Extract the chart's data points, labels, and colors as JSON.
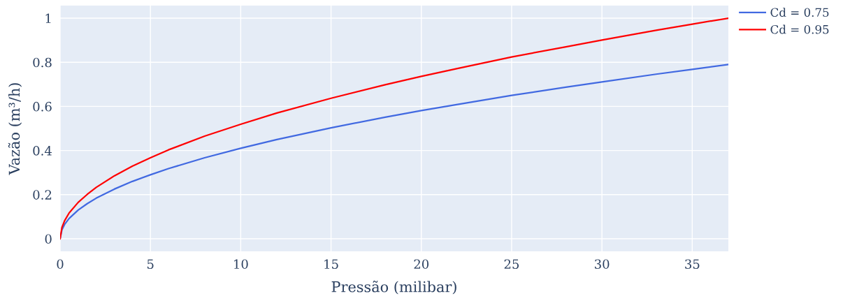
{
  "chart_data": {
    "type": "line",
    "xlabel": "Pressão (milibar)",
    "ylabel": "Vazão (m³/h)",
    "x": [
      0,
      0.1,
      0.25,
      0.5,
      1,
      1.5,
      2,
      3,
      4,
      5,
      6,
      8,
      10,
      12,
      15,
      18,
      20,
      22,
      25,
      28,
      30,
      33,
      35,
      37
    ],
    "series": [
      {
        "name": "Cd = 0.75",
        "color": "#4169e1",
        "values": [
          0,
          0.04,
          0.065,
          0.092,
          0.13,
          0.159,
          0.184,
          0.225,
          0.26,
          0.29,
          0.318,
          0.367,
          0.41,
          0.45,
          0.503,
          0.551,
          0.581,
          0.609,
          0.65,
          0.687,
          0.711,
          0.746,
          0.768,
          0.79
        ]
      },
      {
        "name": "Cd = 0.95",
        "color": "#ff0000",
        "values": [
          0,
          0.051,
          0.082,
          0.117,
          0.165,
          0.201,
          0.233,
          0.285,
          0.329,
          0.367,
          0.403,
          0.465,
          0.519,
          0.57,
          0.637,
          0.698,
          0.736,
          0.772,
          0.824,
          0.87,
          0.901,
          0.945,
          0.973,
          1.0
        ]
      }
    ],
    "xlim": [
      0,
      37
    ],
    "xticks": [
      0,
      5,
      10,
      15,
      20,
      25,
      30,
      35
    ],
    "ylim": [
      -0.057,
      1.057
    ],
    "yticks": [
      0,
      0.2,
      0.4,
      0.6,
      0.8,
      1
    ],
    "grid": true,
    "legend": "top right",
    "marker": "none",
    "line_style": "solid"
  }
}
